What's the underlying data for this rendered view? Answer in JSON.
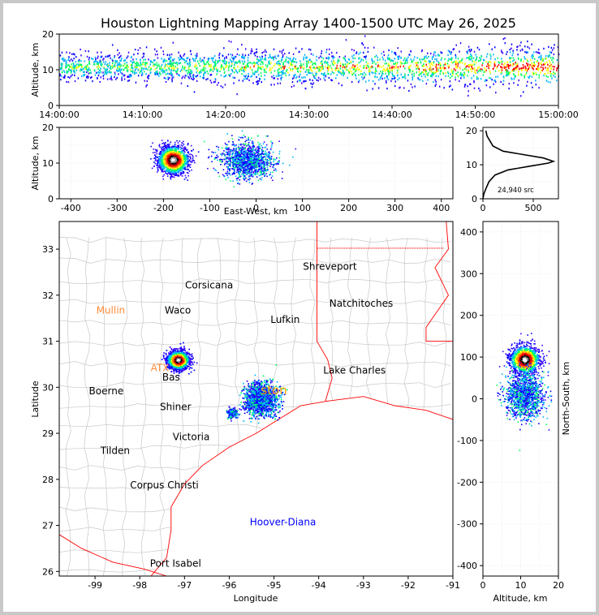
{
  "title": "Houston Lightning Mapping Array 1400-1500 UTC May 26, 2025",
  "colors": {
    "density": [
      "#3a00ff",
      "#0000ff",
      "#00b4ff",
      "#00ff60",
      "#ffff00",
      "#ff8c00",
      "#ff0000",
      "#8c0000",
      "#000000",
      "#ffffff"
    ],
    "state_lines": "#ff0000",
    "county_lines": "#c8c8c8",
    "city_text": "#000000",
    "accent_city": "#ff8c3c",
    "houston_text": "#ffa500",
    "hoover_text": "#0000ff",
    "grid": "#e6e6e6"
  },
  "chart_data": [
    {
      "type": "scatter",
      "panel": "altitude-time",
      "xlabel": "",
      "ylabel": "Altitude, km",
      "x_ticks": [
        "14:00:00",
        "14:10:00",
        "14:20:00",
        "14:30:00",
        "14:40:00",
        "14:50:00",
        "15:00:00"
      ],
      "xlim": [
        "14:00:00",
        "15:00:00"
      ],
      "ylim": [
        0,
        20
      ],
      "y_ticks": [
        0,
        10,
        20
      ],
      "band_center_km": 11,
      "band_halfwidth_km": 3.5
    },
    {
      "type": "scatter",
      "panel": "altitude-eastwest",
      "xlabel": "East-West, km",
      "ylabel": "Altitude, km",
      "xlim": [
        -425,
        425
      ],
      "ylim": [
        0,
        20
      ],
      "x_ticks": [
        -400,
        -300,
        -200,
        -100,
        0,
        100,
        200,
        300,
        400
      ],
      "y_ticks": [
        0,
        10,
        20
      ],
      "clusters": [
        {
          "x_km": -180,
          "alt_km": 11,
          "x_spread": 30,
          "alt_spread": 3.5,
          "intensity": "high"
        },
        {
          "x_km": -20,
          "alt_km": 11,
          "x_spread": 50,
          "alt_spread": 4.5,
          "intensity": "low"
        }
      ]
    },
    {
      "type": "line",
      "panel": "altitude-histogram",
      "xlabel": "",
      "ylabel": "",
      "xlim": [
        0,
        750
      ],
      "ylim": [
        0,
        21
      ],
      "x_ticks": [
        0,
        500
      ],
      "y_ticks": [
        0,
        10,
        20
      ],
      "annotation": "24,940 src",
      "profile": [
        [
          0,
          0
        ],
        [
          10,
          1.5
        ],
        [
          30,
          3
        ],
        [
          60,
          5
        ],
        [
          120,
          7
        ],
        [
          250,
          8.5
        ],
        [
          450,
          9.5
        ],
        [
          650,
          10.5
        ],
        [
          700,
          11
        ],
        [
          600,
          12
        ],
        [
          400,
          13
        ],
        [
          200,
          14
        ],
        [
          100,
          15.5
        ],
        [
          70,
          17
        ],
        [
          40,
          18.5
        ],
        [
          30,
          20
        ]
      ]
    },
    {
      "type": "scatter",
      "panel": "plan-view",
      "xlabel": "Longitude",
      "ylabel": "Latitude",
      "xlim": [
        -99.8,
        -91
      ],
      "ylim": [
        25.9,
        33.6
      ],
      "x_ticks": [
        -99,
        -98,
        -97,
        -96,
        -95,
        -94,
        -93,
        -92,
        -91
      ],
      "y_ticks": [
        26,
        27,
        28,
        29,
        30,
        31,
        32,
        33
      ],
      "clusters": [
        {
          "lon": -97.15,
          "lat": 30.6,
          "lon_spread": 0.25,
          "lat_spread": 0.2,
          "intensity": "high"
        },
        {
          "lon": -95.3,
          "lat": 29.75,
          "lon_spread": 0.35,
          "lat_spread": 0.35,
          "intensity": "low"
        },
        {
          "lon": -95.95,
          "lat": 29.45,
          "lon_spread": 0.12,
          "lat_spread": 0.1,
          "intensity": "low"
        }
      ],
      "cities": [
        {
          "name": "Shreveport",
          "lon": -93.75,
          "lat": 32.55,
          "style": "black"
        },
        {
          "name": "Corsicana",
          "lon": -96.45,
          "lat": 32.15,
          "style": "black"
        },
        {
          "name": "Natchitoches",
          "lon": -93.05,
          "lat": 31.75,
          "style": "black"
        },
        {
          "name": "Mullin",
          "lon": -98.65,
          "lat": 31.6,
          "style": "orange"
        },
        {
          "name": "Waco",
          "lon": -97.15,
          "lat": 31.6,
          "style": "black"
        },
        {
          "name": "Lufkin",
          "lon": -94.75,
          "lat": 31.4,
          "style": "black"
        },
        {
          "name": "ATX",
          "lon": -97.55,
          "lat": 30.35,
          "style": "orange"
        },
        {
          "name": "Bas",
          "lon": -97.3,
          "lat": 30.15,
          "style": "black"
        },
        {
          "name": "Lake Charles",
          "lon": -93.2,
          "lat": 30.3,
          "style": "black"
        },
        {
          "name": "Boerne",
          "lon": -98.75,
          "lat": 29.85,
          "style": "black"
        },
        {
          "name": "ston",
          "lon": -95.0,
          "lat": 29.85,
          "style": "houston"
        },
        {
          "name": "Shiner",
          "lon": -97.2,
          "lat": 29.5,
          "style": "black"
        },
        {
          "name": "Victoria",
          "lon": -96.85,
          "lat": 28.85,
          "style": "black"
        },
        {
          "name": "Tilden",
          "lon": -98.55,
          "lat": 28.55,
          "style": "black"
        },
        {
          "name": "Corpus Christi",
          "lon": -97.45,
          "lat": 27.8,
          "style": "black"
        },
        {
          "name": "Hoover-Diana",
          "lon": -94.8,
          "lat": 27.0,
          "style": "blue"
        },
        {
          "name": "Port Isabel",
          "lon": -97.2,
          "lat": 26.1,
          "style": "black"
        }
      ]
    },
    {
      "type": "scatter",
      "panel": "northsouth-altitude",
      "xlabel": "Altitude, km",
      "ylabel": "North-South, km",
      "xlim": [
        0,
        20
      ],
      "ylim": [
        -425,
        425
      ],
      "x_ticks": [
        0,
        10,
        20
      ],
      "y_ticks": [
        -400,
        -300,
        -200,
        -100,
        0,
        100,
        200,
        300,
        400
      ],
      "clusters": [
        {
          "alt_km": 11,
          "y_km": 95,
          "alt_spread": 3.5,
          "y_spread": 30,
          "intensity": "high"
        },
        {
          "alt_km": 11,
          "y_km": 10,
          "alt_spread": 4.5,
          "y_spread": 50,
          "intensity": "low"
        }
      ]
    }
  ]
}
